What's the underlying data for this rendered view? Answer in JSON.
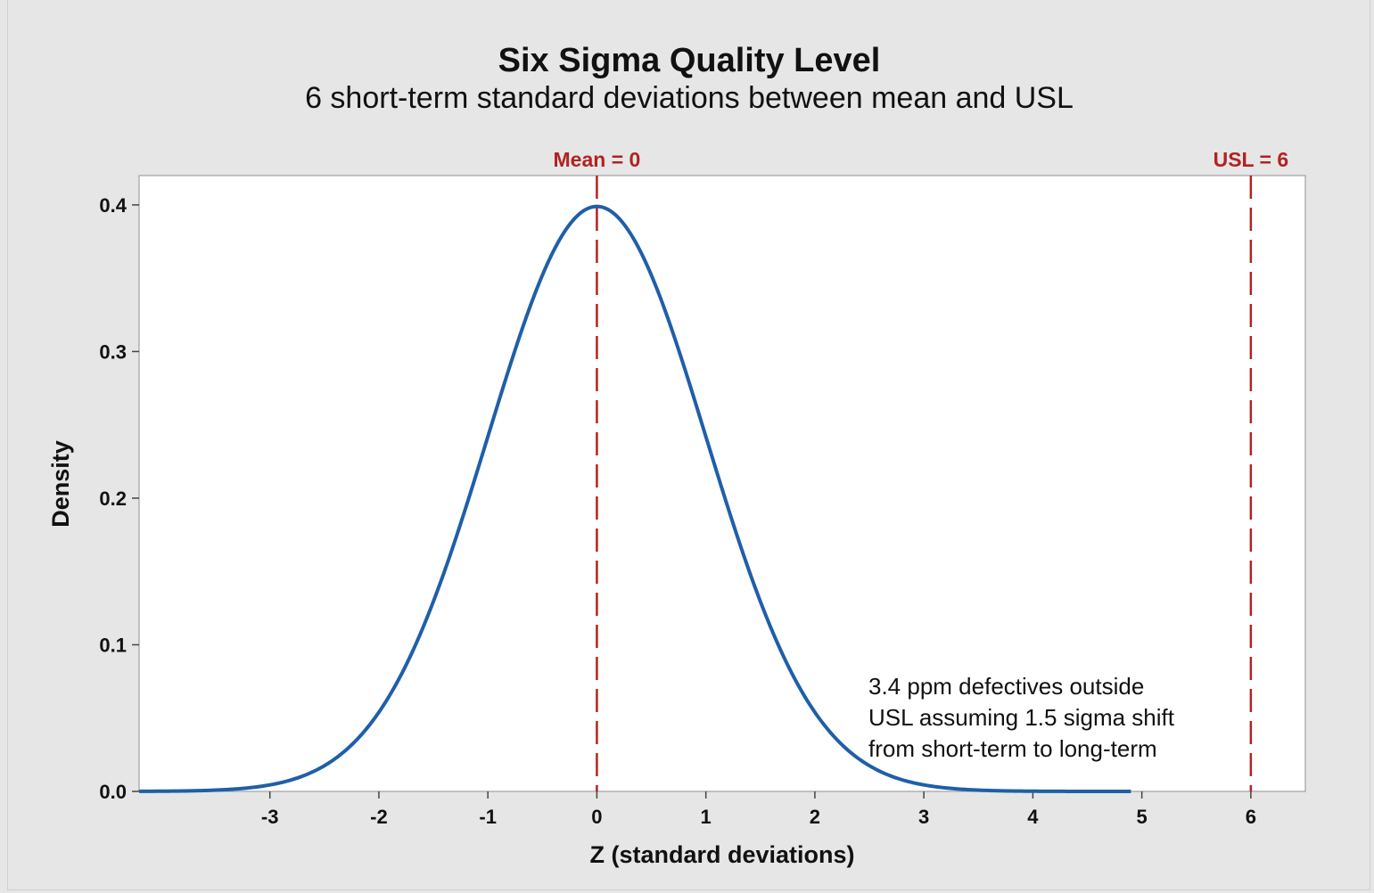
{
  "chart_data": {
    "type": "line",
    "title": "Six Sigma Quality Level",
    "subtitle": "6 short-term standard deviations between mean and USL",
    "xlabel": "Z (standard deviations)",
    "ylabel": "Density",
    "xlim": [
      -4.2,
      6.5
    ],
    "ylim": [
      0,
      0.42
    ],
    "x_ticks": [
      -3,
      -2,
      -1,
      0,
      1,
      2,
      3,
      4,
      5,
      6
    ],
    "x_tick_labels": [
      "-3",
      "-2",
      "-1",
      "0",
      "1",
      "2",
      "3",
      "4",
      "5",
      "6"
    ],
    "y_ticks": [
      0.0,
      0.1,
      0.2,
      0.3,
      0.4
    ],
    "y_tick_labels": [
      "0.0",
      "0.1",
      "0.2",
      "0.3",
      "0.4"
    ],
    "grid": false,
    "series": [
      {
        "color": "#1f5fa8",
        "distribution": "normal",
        "mean": 0,
        "sd": 1,
        "x_range": [
          -4.2,
          4.9
        ]
      }
    ],
    "reference_lines": [
      {
        "label": "Mean = 0",
        "x": 0,
        "color": "#b22222",
        "style": "dashed"
      },
      {
        "label": "USL = 6",
        "x": 6,
        "color": "#b22222",
        "style": "dashed"
      }
    ],
    "annotation": {
      "lines": [
        "3.4 ppm defectives outside",
        "USL assuming 1.5 sigma shift",
        "from short-term to long-term"
      ]
    }
  }
}
